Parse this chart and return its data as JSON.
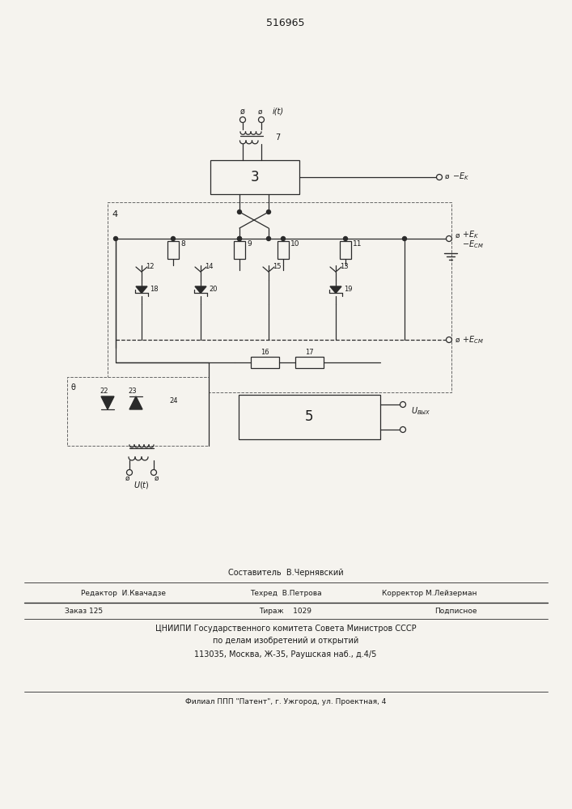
{
  "title": "516965",
  "bg_color": "#f5f3ee",
  "line_color": "#2a2a2a",
  "text_color": "#1a1a1a",
  "fig_width": 7.07,
  "fig_height": 10.0,
  "footer_line1": "Составитель  В.Чернявский",
  "footer_line2a": "Редактор  И.Квачадзе",
  "footer_line2b": "Техред  В.Петрова",
  "footer_line2c": "Корректор М.Лейзерман",
  "footer_line3a": "Заказ 125",
  "footer_line3b": "Тираж    1029",
  "footer_line3c": "Подписное",
  "footer_line4": "ЦНИИПИ Государственного комитета Совета Министров СССР",
  "footer_line5": "по делам изобретений и открытий",
  "footer_line6": "113035, Москва, Ж-35, Раушская наб., д.4/5",
  "footer_line7": "Филиал ППП \"Патент\", г. Ужгород, ул. Проектная, 4"
}
